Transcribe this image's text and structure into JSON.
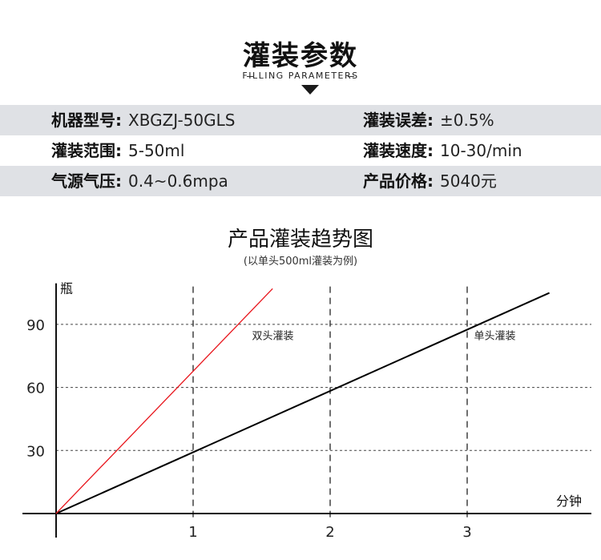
{
  "header": {
    "title": "灌装参数",
    "subtitle": "FILLING PARAMETERS"
  },
  "params": {
    "rows": [
      {
        "left": {
          "label": "机器型号:",
          "value": "XBGZJ-50GLS"
        },
        "right": {
          "label": "灌装误差:",
          "value": "±0.5%"
        },
        "shaded": true
      },
      {
        "left": {
          "label": "灌装范围:",
          "value": "5-50ml"
        },
        "right": {
          "label": "灌装速度:",
          "value": "10-30/min"
        },
        "shaded": false
      },
      {
        "left": {
          "label": "气源气压:",
          "value": "0.4~0.6mpa"
        },
        "right": {
          "label": "产品价格:",
          "value": "5040元"
        },
        "shaded": true
      }
    ]
  },
  "chart_data": {
    "type": "line",
    "title": "产品灌装趋势图",
    "subtitle": "(以单头500ml灌装为例)",
    "xlabel": "分钟",
    "ylabel": "瓶",
    "xlim": [
      0,
      3.6
    ],
    "ylim": [
      0,
      108
    ],
    "xticks": [
      1,
      2,
      3
    ],
    "yticks": [
      30,
      60,
      90
    ],
    "grid": true,
    "series": [
      {
        "name": "单头灌装",
        "color": "#000000",
        "x": [
          0,
          3.6
        ],
        "y": [
          0,
          105
        ]
      },
      {
        "name": "双头灌装",
        "color": "#e8141b",
        "x": [
          0,
          1.58
        ],
        "y": [
          0,
          107
        ]
      }
    ]
  }
}
